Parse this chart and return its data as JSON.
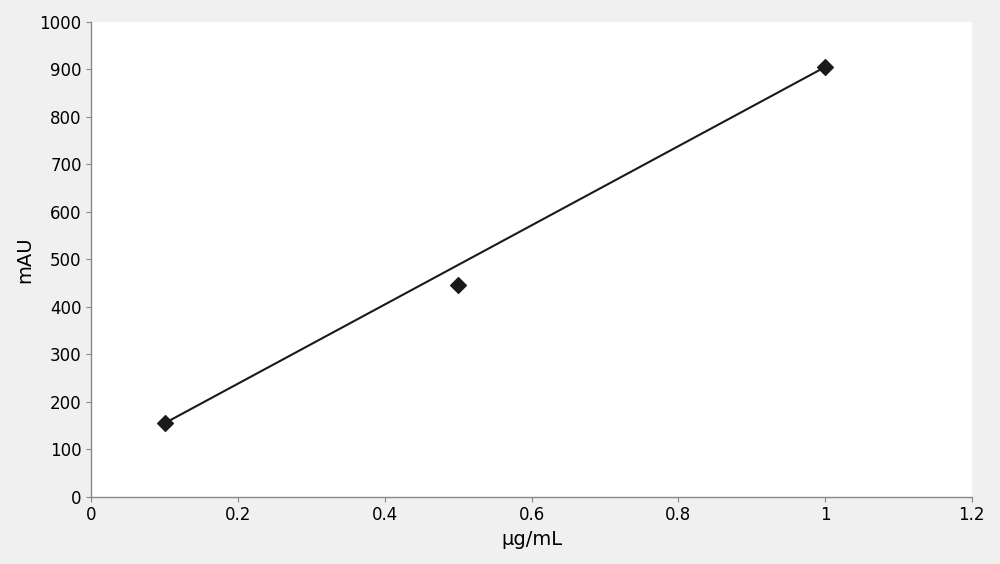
{
  "x_data": [
    0.1,
    0.5,
    1.0
  ],
  "y_data": [
    155,
    445,
    905
  ],
  "line_x": [
    0.1,
    1.0
  ],
  "line_y": [
    155,
    905
  ],
  "xlim": [
    0,
    1.2
  ],
  "ylim": [
    0,
    1000
  ],
  "xticks": [
    0,
    0.2,
    0.4,
    0.6,
    0.8,
    1.0,
    1.2
  ],
  "yticks": [
    0,
    100,
    200,
    300,
    400,
    500,
    600,
    700,
    800,
    900,
    1000
  ],
  "xlabel": "μg/mL",
  "ylabel": "mAU",
  "marker": "D",
  "marker_size": 8,
  "marker_color": "#1a1a1a",
  "line_color": "#1a1a1a",
  "line_width": 1.5,
  "background_color": "#f0f0f0",
  "axes_color": "#ffffff",
  "xlabel_fontsize": 14,
  "ylabel_fontsize": 14,
  "tick_fontsize": 12
}
